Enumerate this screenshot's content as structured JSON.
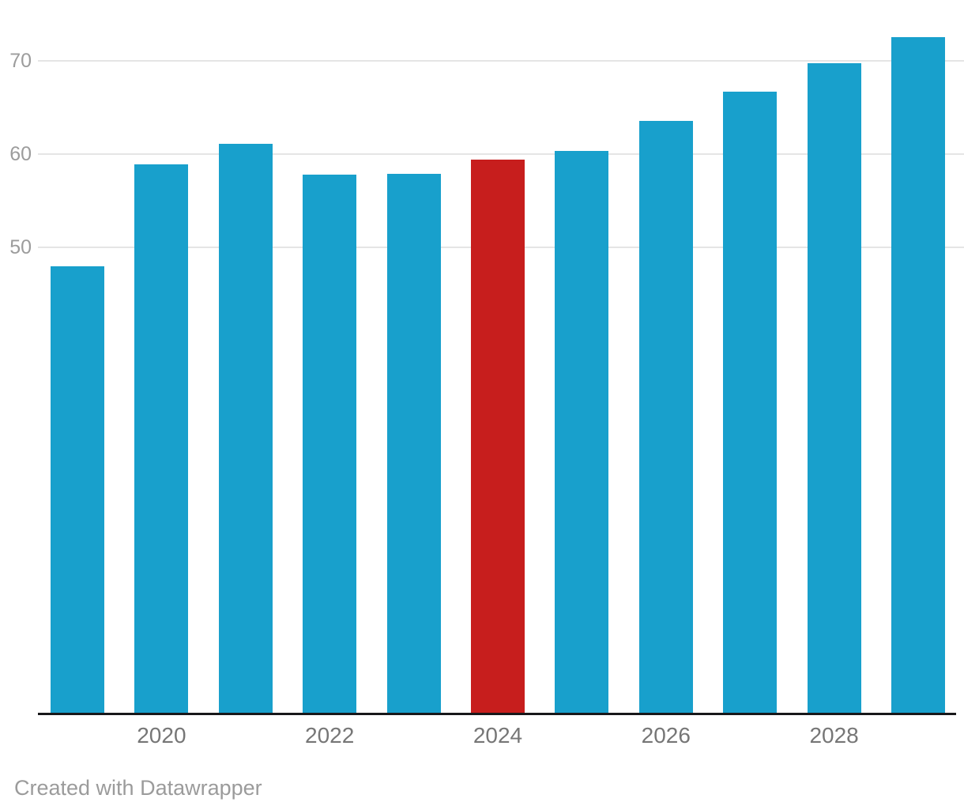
{
  "chart_data": {
    "type": "bar",
    "categories": [
      "2019",
      "2020",
      "2021",
      "2022",
      "2023",
      "2024",
      "2025",
      "2026",
      "2027",
      "2028",
      "2029"
    ],
    "values": [
      48.0,
      58.9,
      61.1,
      57.8,
      57.9,
      59.4,
      60.4,
      63.6,
      66.7,
      69.8,
      72.6
    ],
    "highlight_category": "2024",
    "bar_color": "#18a0cc",
    "highlight_color": "#c71e1d",
    "y_ticks": [
      50,
      60,
      70
    ],
    "x_tick_labels": [
      "2020",
      "2022",
      "2024",
      "2026",
      "2028"
    ],
    "ylim": [
      0,
      73.5
    ],
    "grid": "horizontal gridlines at y ticks, no vertical grid",
    "legend": "none",
    "title": "",
    "xlabel": "",
    "ylabel": ""
  },
  "footer": {
    "attribution": "Created with Datawrapper"
  },
  "colors": {
    "background": "#ffffff",
    "gridline": "#e5e5e5",
    "axis_line": "#18181a",
    "y_tick_label": "#9c9c9c",
    "x_tick_label": "#767676",
    "footer_text": "#9b9b9b"
  }
}
